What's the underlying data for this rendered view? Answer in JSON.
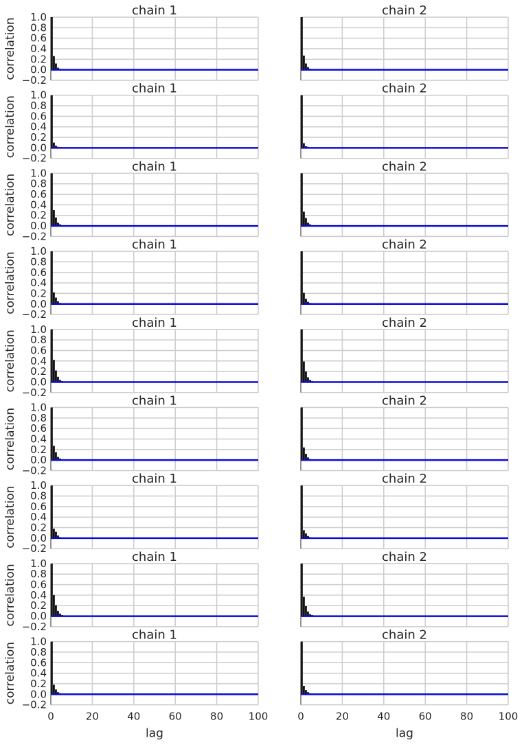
{
  "chart_data": {
    "type": "bar",
    "layout": {
      "rows": 9,
      "cols": 2
    },
    "xlabel": "lag",
    "ylabel": "correlation",
    "xlim": [
      0,
      100
    ],
    "ylim": [
      -0.2,
      1.0
    ],
    "x_ticks": [
      0,
      20,
      40,
      60,
      80,
      100
    ],
    "y_ticks": [
      -0.2,
      0.0,
      0.2,
      0.4,
      0.6,
      0.8,
      1.0
    ],
    "x_tick_labels": [
      "0",
      "20",
      "40",
      "60",
      "80",
      "100"
    ],
    "y_tick_labels": [
      "−0.2",
      "0.0",
      "0.2",
      "0.4",
      "0.6",
      "0.8",
      "1.0"
    ],
    "grid": true,
    "colors": {
      "bars": "#111111",
      "line": "#0a0adc",
      "grid": "#cccccc",
      "spine": "#262626"
    },
    "panels": [
      {
        "title": "chain 1",
        "row": 1,
        "col": 1,
        "values": [
          1.0,
          0.26,
          0.12,
          0.04,
          0.02,
          0.01,
          0.01,
          0.0,
          0.0,
          0.0
        ]
      },
      {
        "title": "chain 2",
        "row": 1,
        "col": 2,
        "values": [
          1.0,
          0.27,
          0.12,
          0.05,
          0.02,
          0.01,
          0.0,
          0.0,
          0.0,
          0.0
        ]
      },
      {
        "title": "chain 1",
        "row": 2,
        "col": 1,
        "values": [
          1.0,
          0.1,
          0.04,
          0.02,
          0.01,
          0.0,
          0.0,
          0.0,
          0.0,
          0.0
        ]
      },
      {
        "title": "chain 2",
        "row": 2,
        "col": 2,
        "values": [
          1.0,
          0.09,
          0.03,
          0.02,
          0.01,
          0.0,
          0.0,
          0.0,
          0.0,
          0.0
        ]
      },
      {
        "title": "chain 1",
        "row": 3,
        "col": 1,
        "values": [
          1.0,
          0.3,
          0.16,
          0.06,
          0.03,
          0.01,
          0.01,
          0.0,
          0.0,
          0.0
        ]
      },
      {
        "title": "chain 2",
        "row": 3,
        "col": 2,
        "values": [
          1.0,
          0.27,
          0.15,
          0.06,
          0.03,
          0.01,
          0.0,
          0.0,
          0.0,
          0.0
        ]
      },
      {
        "title": "chain 1",
        "row": 4,
        "col": 1,
        "values": [
          1.0,
          0.22,
          0.12,
          0.05,
          0.02,
          0.01,
          0.0,
          0.0,
          0.0,
          0.0
        ]
      },
      {
        "title": "chain 2",
        "row": 4,
        "col": 2,
        "values": [
          1.0,
          0.21,
          0.1,
          0.04,
          0.02,
          0.01,
          0.0,
          0.0,
          0.0,
          0.0
        ]
      },
      {
        "title": "chain 1",
        "row": 5,
        "col": 1,
        "values": [
          1.0,
          0.42,
          0.22,
          0.1,
          0.04,
          0.02,
          0.01,
          0.0,
          0.0,
          0.0
        ]
      },
      {
        "title": "chain 2",
        "row": 5,
        "col": 2,
        "values": [
          1.0,
          0.39,
          0.2,
          0.09,
          0.04,
          0.02,
          0.01,
          0.0,
          0.0,
          0.0
        ]
      },
      {
        "title": "chain 1",
        "row": 6,
        "col": 1,
        "values": [
          1.0,
          0.27,
          0.15,
          0.06,
          0.03,
          0.01,
          0.0,
          0.0,
          0.0,
          0.0
        ]
      },
      {
        "title": "chain 2",
        "row": 6,
        "col": 2,
        "values": [
          1.0,
          0.24,
          0.12,
          0.05,
          0.02,
          0.01,
          0.0,
          0.0,
          0.0,
          0.0
        ]
      },
      {
        "title": "chain 1",
        "row": 7,
        "col": 1,
        "values": [
          1.0,
          0.18,
          0.12,
          0.05,
          0.02,
          0.01,
          0.0,
          0.0,
          0.0,
          0.0
        ]
      },
      {
        "title": "chain 2",
        "row": 7,
        "col": 2,
        "values": [
          1.0,
          0.15,
          0.09,
          0.04,
          0.02,
          0.01,
          0.0,
          0.0,
          0.0,
          0.0
        ]
      },
      {
        "title": "chain 1",
        "row": 8,
        "col": 1,
        "values": [
          1.0,
          0.4,
          0.21,
          0.1,
          0.05,
          0.02,
          0.01,
          0.0,
          0.0,
          0.0
        ]
      },
      {
        "title": "chain 2",
        "row": 8,
        "col": 2,
        "values": [
          1.0,
          0.37,
          0.19,
          0.09,
          0.04,
          0.02,
          0.01,
          0.0,
          0.0,
          0.0
        ]
      },
      {
        "title": "chain 1",
        "row": 9,
        "col": 1,
        "values": [
          1.0,
          0.18,
          0.09,
          0.04,
          0.02,
          0.01,
          0.0,
          0.0,
          0.0,
          0.0
        ]
      },
      {
        "title": "chain 2",
        "row": 9,
        "col": 2,
        "values": [
          1.0,
          0.16,
          0.08,
          0.04,
          0.02,
          0.01,
          0.0,
          0.0,
          0.0,
          0.0
        ]
      }
    ]
  }
}
